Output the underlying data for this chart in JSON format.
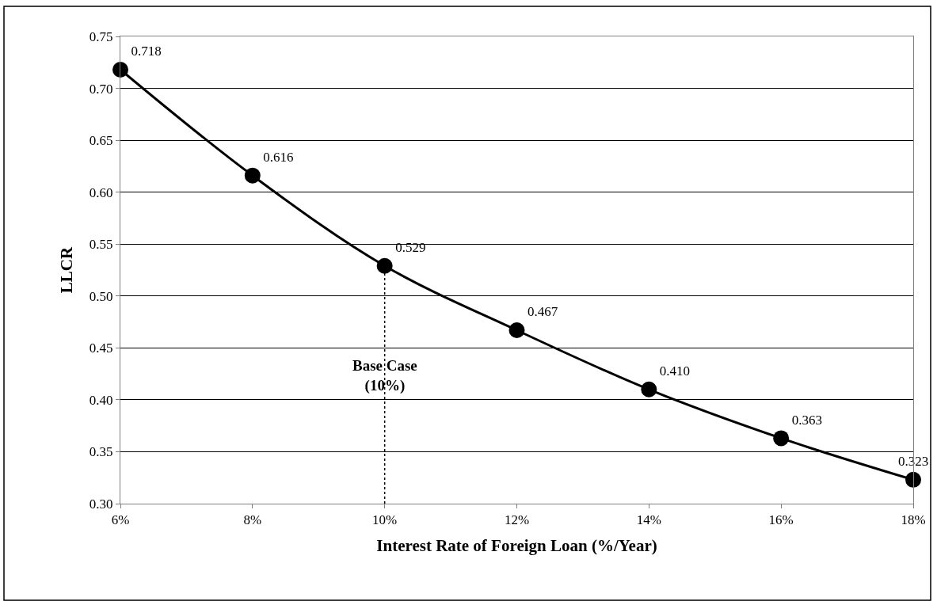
{
  "chart_data": {
    "type": "line",
    "xlabel": "Interest Rate of Foreign Loan (%/Year)",
    "ylabel": "LLCR",
    "x": [
      6,
      8,
      10,
      12,
      14,
      16,
      18
    ],
    "series": [
      {
        "color": "#000000",
        "values": [
          0.718,
          0.616,
          0.529,
          0.467,
          0.41,
          0.363,
          0.323
        ]
      }
    ],
    "value_labels": [
      "0.718",
      "0.616",
      "0.529",
      "0.467",
      "0.410",
      "0.363",
      "0.323"
    ],
    "xlim": [
      6,
      18
    ],
    "xticks": [
      {
        "value": 6,
        "label": "6%"
      },
      {
        "value": 8,
        "label": "8%"
      },
      {
        "value": 10,
        "label": "10%"
      },
      {
        "value": 12,
        "label": "12%"
      },
      {
        "value": 14,
        "label": "14%"
      },
      {
        "value": 16,
        "label": "16%"
      },
      {
        "value": 18,
        "label": "18%"
      }
    ],
    "ylim": [
      0.3,
      0.75
    ],
    "yticks": [
      {
        "value": 0.3,
        "label": "0.30"
      },
      {
        "value": 0.35,
        "label": "0.35"
      },
      {
        "value": 0.4,
        "label": "0.40"
      },
      {
        "value": 0.45,
        "label": "0.45"
      },
      {
        "value": 0.5,
        "label": "0.50"
      },
      {
        "value": 0.55,
        "label": "0.55"
      },
      {
        "value": 0.6,
        "label": "0.60"
      },
      {
        "value": 0.65,
        "label": "0.65"
      },
      {
        "value": 0.7,
        "label": "0.70"
      },
      {
        "value": 0.75,
        "label": "0.75"
      }
    ],
    "ref_lines": [
      {
        "axis": "x",
        "value": 10,
        "label": "Base Case\n(10%)",
        "line_style": "dotted",
        "color": "#000000"
      }
    ],
    "grid": "y",
    "marker": "circle",
    "line_style": "solid"
  }
}
